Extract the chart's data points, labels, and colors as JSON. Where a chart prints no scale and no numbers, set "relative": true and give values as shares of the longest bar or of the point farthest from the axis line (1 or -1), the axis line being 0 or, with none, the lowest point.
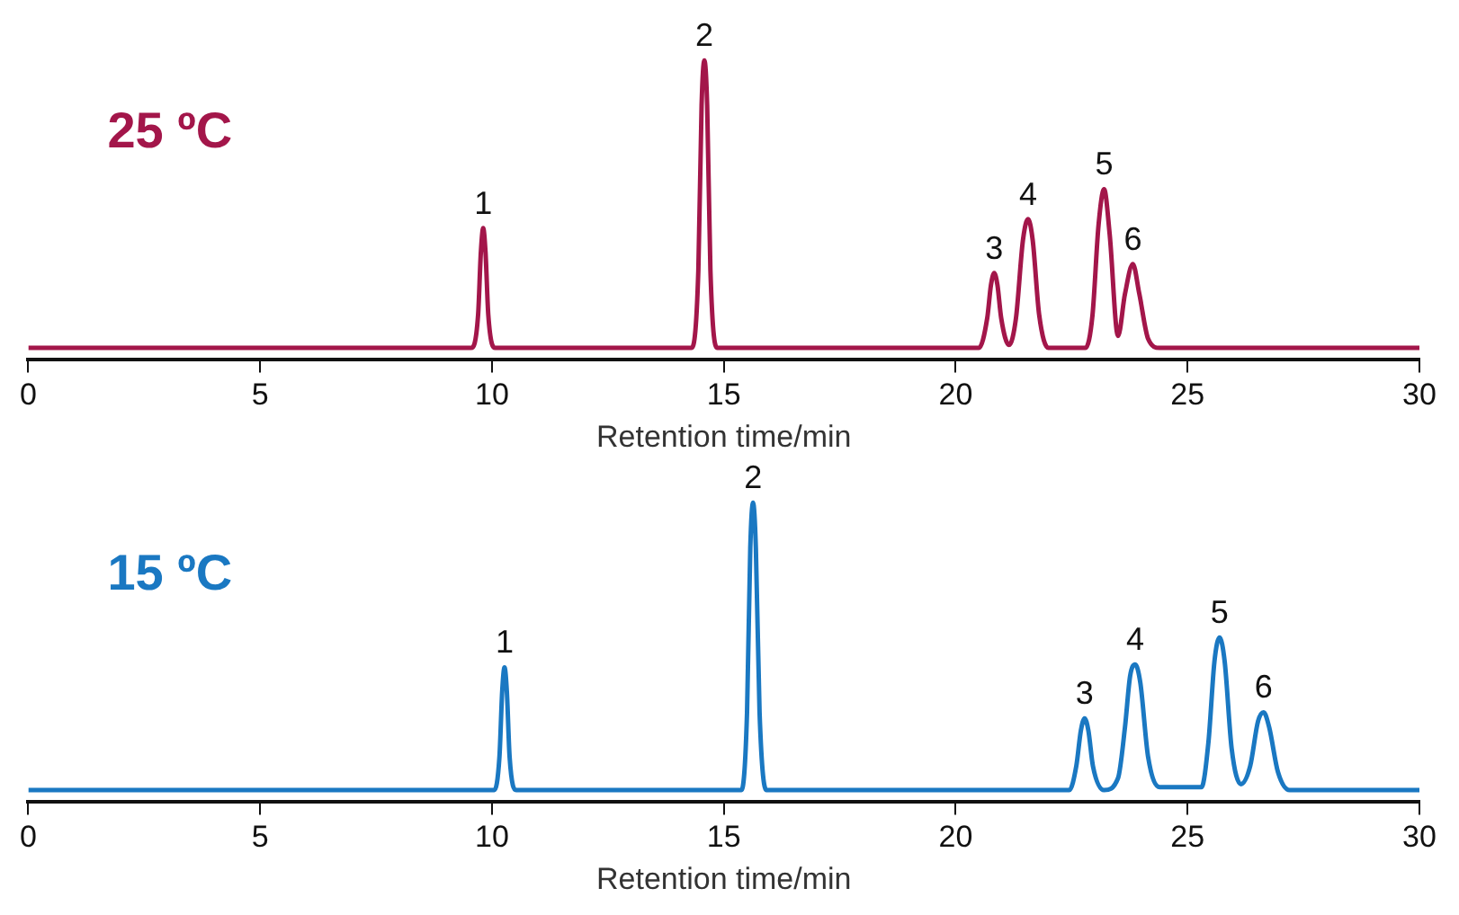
{
  "chart_data": [
    {
      "type": "line",
      "title": "25 ºC",
      "xlabel": "Retention time/min",
      "relative": true,
      "grid": false,
      "legend": false,
      "marker": "none",
      "line_style": "solid",
      "xlim": [
        0,
        30
      ],
      "xticks": [
        0,
        5,
        10,
        15,
        20,
        25,
        30
      ],
      "series": [
        {
          "color": "#a3164a",
          "x": [
            0,
            9.55,
            9.7,
            9.76,
            9.81,
            9.86,
            9.92,
            10.07,
            14.3,
            14.45,
            14.52,
            14.58,
            14.64,
            14.71,
            14.86,
            20.5,
            20.68,
            20.76,
            20.83,
            20.9,
            20.98,
            21.15,
            21.3,
            21.45,
            21.56,
            21.66,
            21.8,
            22.0,
            22.8,
            22.95,
            23.08,
            23.2,
            23.32,
            23.5,
            23.65,
            23.82,
            23.96,
            24.15,
            24.4,
            30
          ],
          "values": [
            0.04,
            0.04,
            0.15,
            0.36,
            0.44,
            0.36,
            0.15,
            0.04,
            0.04,
            0.3,
            0.85,
            1,
            0.85,
            0.3,
            0.04,
            0.04,
            0.14,
            0.25,
            0.29,
            0.25,
            0.14,
            0.05,
            0.14,
            0.4,
            0.47,
            0.4,
            0.15,
            0.04,
            0.04,
            0.15,
            0.45,
            0.57,
            0.42,
            0.08,
            0.22,
            0.32,
            0.22,
            0.07,
            0.04,
            0.04
          ]
        }
      ],
      "annotations": [
        {
          "text": "1",
          "x": 9.81,
          "y": 0.44
        },
        {
          "text": "2",
          "x": 14.58,
          "y": 1
        },
        {
          "text": "3",
          "x": 20.83,
          "y": 0.29
        },
        {
          "text": "4",
          "x": 21.56,
          "y": 0.47
        },
        {
          "text": "5",
          "x": 23.2,
          "y": 0.57
        },
        {
          "text": "6",
          "x": 23.82,
          "y": 0.32
        }
      ]
    },
    {
      "type": "line",
      "title": "15 ºC",
      "xlabel": "Retention time/min",
      "relative": true,
      "grid": false,
      "legend": false,
      "marker": "none",
      "line_style": "solid",
      "xlim": [
        0,
        30
      ],
      "xticks": [
        0,
        5,
        10,
        15,
        20,
        25,
        30
      ],
      "series": [
        {
          "color": "#1a78c2",
          "x": [
            0,
            10.05,
            10.16,
            10.22,
            10.27,
            10.32,
            10.38,
            10.52,
            15.38,
            15.5,
            15.57,
            15.63,
            15.69,
            15.77,
            15.92,
            22.45,
            22.6,
            22.7,
            22.78,
            22.86,
            22.96,
            23.2,
            23.5,
            23.65,
            23.76,
            23.87,
            23.98,
            24.15,
            24.4,
            25.3,
            25.45,
            25.58,
            25.69,
            25.8,
            25.95,
            26.15,
            26.35,
            26.52,
            26.64,
            26.76,
            26.95,
            27.2,
            30
          ],
          "values": [
            0.04,
            0.04,
            0.15,
            0.37,
            0.45,
            0.37,
            0.15,
            0.04,
            0.04,
            0.3,
            0.85,
            1,
            0.85,
            0.3,
            0.04,
            0.04,
            0.12,
            0.24,
            0.28,
            0.24,
            0.12,
            0.04,
            0.08,
            0.25,
            0.42,
            0.46,
            0.4,
            0.15,
            0.05,
            0.05,
            0.2,
            0.47,
            0.55,
            0.47,
            0.18,
            0.06,
            0.12,
            0.27,
            0.3,
            0.25,
            0.1,
            0.04,
            0.04
          ]
        }
      ],
      "annotations": [
        {
          "text": "1",
          "x": 10.27,
          "y": 0.45
        },
        {
          "text": "2",
          "x": 15.63,
          "y": 1
        },
        {
          "text": "3",
          "x": 22.78,
          "y": 0.28
        },
        {
          "text": "4",
          "x": 23.87,
          "y": 0.46
        },
        {
          "text": "5",
          "x": 25.69,
          "y": 0.55
        },
        {
          "text": "6",
          "x": 26.64,
          "y": 0.3
        }
      ]
    }
  ]
}
